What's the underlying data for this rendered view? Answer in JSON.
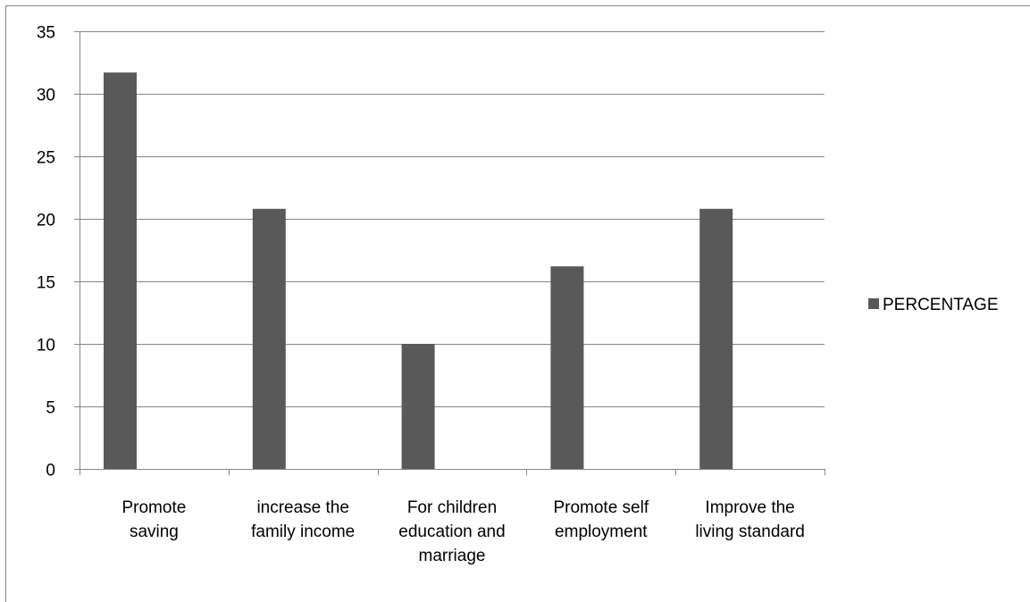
{
  "chart_data": {
    "type": "bar",
    "categories": [
      [
        "Promote",
        "saving"
      ],
      [
        "increase the",
        "family income"
      ],
      [
        "For children",
        "education and",
        "marriage"
      ],
      [
        "Promote self",
        "employment"
      ],
      [
        "Improve the",
        "living standard"
      ]
    ],
    "series": [
      {
        "name": "PERCENTAGE",
        "values": [
          31.7,
          20.8,
          10.0,
          16.2,
          20.8
        ],
        "color": "#595959"
      }
    ],
    "ylim": [
      0,
      35
    ],
    "yticks": [
      0,
      5,
      10,
      15,
      20,
      25,
      30,
      35
    ],
    "grid": true,
    "legend": "right",
    "title": "",
    "xlabel": "",
    "ylabel": ""
  }
}
